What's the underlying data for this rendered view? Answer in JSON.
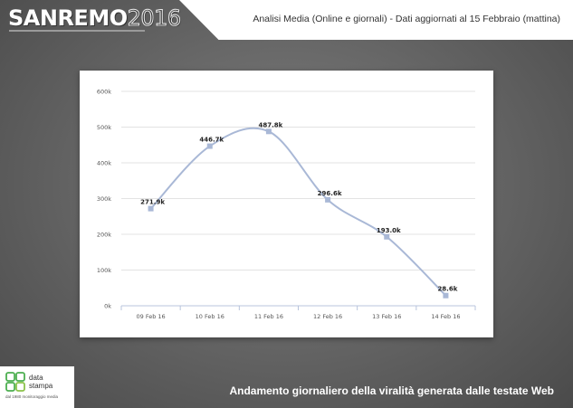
{
  "header": {
    "logo_main": "SANREMO",
    "logo_year": "2016",
    "subtitle": "Analisi Media (Online e giornali) - Dati aggiornati al 15 Febbraio (mattina)"
  },
  "footer": {
    "caption": "Andamento giornaliero della viralità generata dalle testate Web"
  },
  "brand": {
    "name": "data\nstampa",
    "tagline": "dal 1980 monitoraggio media",
    "accent_color": "#4caf50"
  },
  "colors": {
    "line": "#a9b8d6",
    "marker": "#a9b8d6",
    "card": "#ffffff"
  },
  "chart_data": {
    "type": "line",
    "categories": [
      "09 Feb 16",
      "10 Feb 16",
      "11 Feb 16",
      "12 Feb 16",
      "13 Feb 16",
      "14 Feb 16"
    ],
    "values": [
      271900,
      446700,
      487800,
      296600,
      193000,
      28600
    ],
    "data_labels": [
      "271.9k",
      "446.7k",
      "487.8k",
      "296.6k",
      "193.0k",
      "28.6k"
    ],
    "ylim": [
      0,
      600000
    ],
    "yticks": [
      0,
      100000,
      200000,
      300000,
      400000,
      500000,
      600000
    ],
    "ytick_labels": [
      "0k",
      "100k",
      "200k",
      "300k",
      "400k",
      "500k",
      "600k"
    ],
    "grid": true,
    "legend": "none"
  }
}
